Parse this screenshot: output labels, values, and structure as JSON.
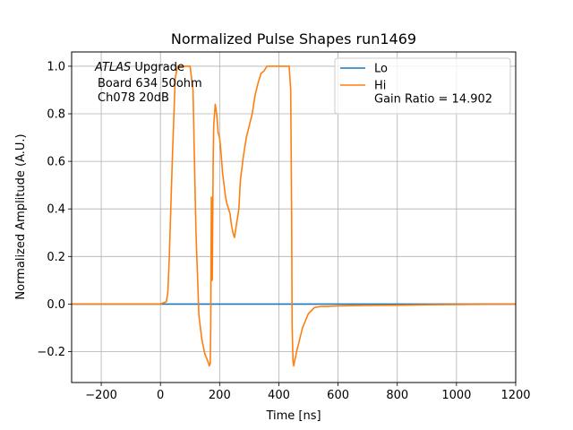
{
  "chart_data": {
    "type": "line",
    "title": "Normalized Pulse Shapes run1469",
    "xlabel": "Time [ns]",
    "ylabel": "Normalized Amplitude (A.U.)",
    "xlim": [
      -300,
      1200
    ],
    "ylim": [
      -0.33,
      1.06
    ],
    "xticks": [
      -200,
      0,
      200,
      400,
      600,
      800,
      1000,
      1200
    ],
    "xtick_labels": [
      "−200",
      "0",
      "200",
      "400",
      "600",
      "800",
      "1000",
      "1200"
    ],
    "yticks": [
      -0.2,
      0.0,
      0.2,
      0.4,
      0.6,
      0.8,
      1.0
    ],
    "ytick_labels": [
      "−0.2",
      "0.0",
      "0.2",
      "0.4",
      "0.6",
      "0.8",
      "1.0"
    ],
    "grid": true,
    "legend_position": "top-right",
    "annotation": {
      "experiment": "ATLAS",
      "line1_rest": " Upgrade",
      "line2": "Board 634 50ohm",
      "line3": "Ch078 20dB"
    },
    "series": [
      {
        "name": "Lo",
        "label_lines": [
          "Lo"
        ],
        "color": "#1f77b4",
        "x": [
          -300,
          0,
          200,
          400,
          600,
          800,
          1000,
          1200
        ],
        "y": [
          0,
          0,
          0,
          0,
          0,
          0,
          0,
          0
        ]
      },
      {
        "name": "Hi Gain Ratio = 14.902",
        "label_lines": [
          "Hi",
          " Gain Ratio = 14.902"
        ],
        "color": "#ff7f0e",
        "x": [
          -300,
          0,
          20,
          25,
          30,
          40,
          50,
          58,
          65,
          75,
          85,
          100,
          110,
          115,
          120,
          130,
          140,
          150,
          160,
          165,
          168,
          170,
          172,
          175,
          178,
          180,
          185,
          190,
          195,
          200,
          205,
          210,
          215,
          220,
          225,
          230,
          235,
          240,
          245,
          250,
          255,
          260,
          265,
          270,
          280,
          290,
          300,
          310,
          320,
          330,
          340,
          350,
          360,
          380,
          400,
          420,
          435,
          440,
          443,
          445,
          448,
          450,
          460,
          480,
          500,
          520,
          540,
          560,
          600,
          700,
          800,
          900,
          1000,
          1100,
          1200
        ],
        "y": [
          0,
          0,
          0.01,
          0.05,
          0.2,
          0.6,
          0.95,
          1.0,
          1.0,
          1.0,
          1.0,
          1.0,
          0.9,
          0.6,
          0.3,
          -0.05,
          -0.15,
          -0.21,
          -0.24,
          -0.26,
          -0.25,
          -0.1,
          0.45,
          0.1,
          0.6,
          0.75,
          0.84,
          0.8,
          0.72,
          0.7,
          0.63,
          0.55,
          0.5,
          0.45,
          0.42,
          0.4,
          0.38,
          0.33,
          0.3,
          0.28,
          0.32,
          0.36,
          0.4,
          0.52,
          0.62,
          0.7,
          0.75,
          0.8,
          0.88,
          0.93,
          0.97,
          0.98,
          1.0,
          1.0,
          1.0,
          1.0,
          1.0,
          0.9,
          0.4,
          -0.1,
          -0.24,
          -0.26,
          -0.2,
          -0.1,
          -0.04,
          -0.015,
          -0.01,
          -0.01,
          -0.008,
          -0.006,
          -0.005,
          -0.003,
          -0.002,
          -0.001,
          0.0
        ]
      }
    ]
  }
}
